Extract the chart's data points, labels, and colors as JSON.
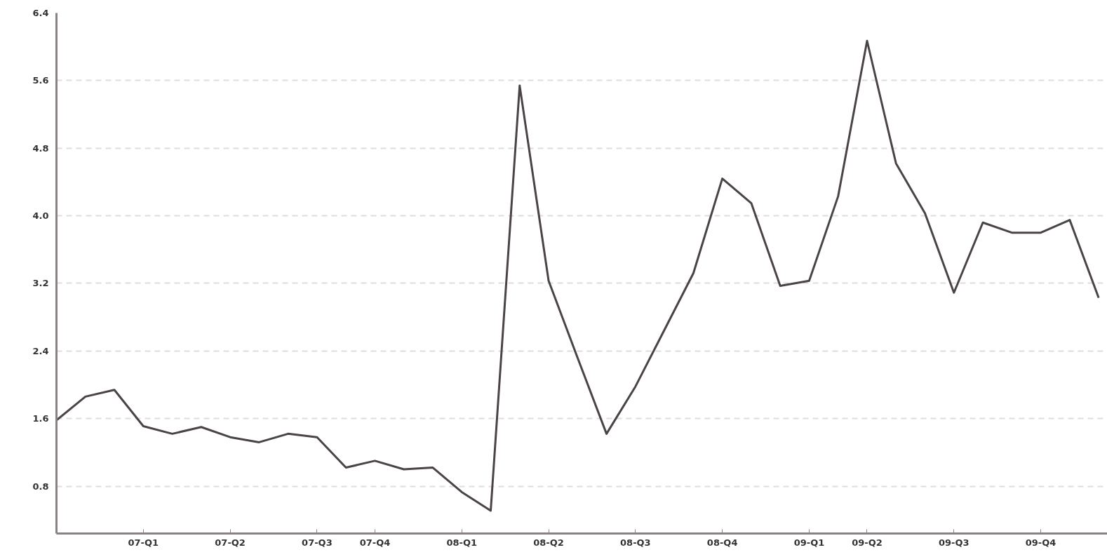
{
  "chart_data": {
    "type": "line",
    "categories": [
      null,
      null,
      null,
      "07-Q1",
      null,
      null,
      "07-Q2",
      null,
      null,
      "07-Q3",
      null,
      "07-Q4",
      null,
      null,
      "08-Q1",
      null,
      null,
      "08-Q2",
      null,
      null,
      "08-Q3",
      null,
      null,
      "08-Q4",
      null,
      null,
      "09-Q1",
      null,
      "09-Q2",
      null,
      null,
      "09-Q3",
      null,
      null,
      "09-Q4",
      null,
      null
    ],
    "series": [
      {
        "color": "#4a4444",
        "values": [
          1.58,
          1.86,
          1.94,
          1.51,
          1.42,
          1.5,
          1.38,
          1.32,
          1.42,
          1.38,
          1.02,
          1.1,
          1.0,
          1.02,
          0.73,
          0.51,
          5.54,
          3.23,
          2.32,
          1.42,
          1.98,
          2.65,
          3.32,
          4.44,
          4.15,
          3.17,
          3.23,
          4.23,
          6.07,
          4.62,
          4.03,
          3.09,
          3.92,
          3.8,
          3.8,
          3.95,
          3.03
        ]
      }
    ],
    "ylim": [
      0.24,
      6.4
    ],
    "yticks": [
      {
        "value": 0.8,
        "label": "0.8"
      },
      {
        "value": 1.6,
        "label": "1.6"
      },
      {
        "value": 2.4,
        "label": "2.4"
      },
      {
        "value": 3.2,
        "label": "3.2"
      },
      {
        "value": 4.0,
        "label": "4.0"
      },
      {
        "value": 4.8,
        "label": "4.8"
      },
      {
        "value": 5.6,
        "label": "5.6"
      },
      {
        "value": 6.4,
        "label": "6.4"
      }
    ],
    "grid": "y",
    "line_style": "solid",
    "marker": "none"
  }
}
